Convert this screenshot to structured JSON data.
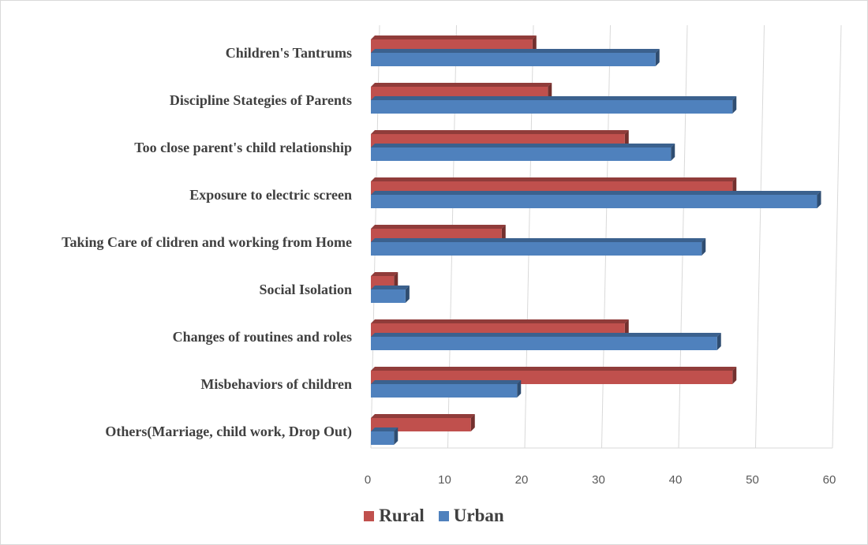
{
  "chart_data": {
    "type": "bar",
    "orientation": "horizontal",
    "categories": [
      "Children's Tantrums",
      "Discipline Stategies of Parents",
      "Too close parent's child relationship",
      "Exposure to electric screen",
      "Taking Care of clidren and working from Home",
      "Social Isolation",
      "Changes of routines and roles",
      "Misbehaviors of children",
      "Others(Marriage, child work, Drop Out)"
    ],
    "series": [
      {
        "name": "Rural",
        "color": "#c0504d",
        "values": [
          21,
          23,
          33,
          47,
          17,
          3,
          33,
          47,
          13
        ]
      },
      {
        "name": "Urban",
        "color": "#4f81bd",
        "values": [
          37,
          47,
          39,
          58,
          43,
          4.5,
          45,
          19,
          3
        ]
      }
    ],
    "xlim": [
      0,
      60
    ],
    "xticks": [
      "0",
      "10",
      "20",
      "30",
      "40",
      "50",
      "60"
    ],
    "grid": "vertical",
    "legend_position": "bottom"
  }
}
